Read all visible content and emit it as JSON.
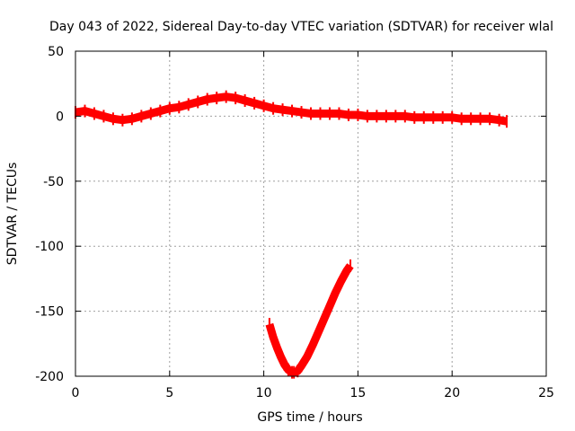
{
  "chart_data": {
    "type": "line",
    "title": "Day 043 of 2022, Sidereal Day-to-day VTEC variation (SDTVAR) for receiver wlal",
    "xlabel": "GPS time / hours",
    "ylabel": "SDTVAR / TECUs",
    "xlim": [
      0,
      25
    ],
    "ylim": [
      -200,
      50
    ],
    "grid": true,
    "xticks": [
      0,
      5,
      10,
      15,
      20,
      25
    ],
    "yticks": [
      50,
      0,
      -50,
      -100,
      -150,
      -200
    ],
    "xtick_labels": [
      "0",
      "5",
      "10",
      "15",
      "20",
      "25"
    ],
    "ytick_labels": [
      "50",
      "0",
      "-50",
      "-100",
      "-150",
      "-200"
    ],
    "series_color": "#ff0000",
    "series": [
      {
        "name": "main-trace",
        "x": [
          0,
          0.5,
          1,
          1.5,
          2,
          2.5,
          3,
          3.5,
          4,
          4.5,
          5,
          5.5,
          6,
          6.5,
          7,
          7.5,
          8,
          8.5,
          9,
          9.5,
          10,
          10.5,
          11,
          11.5,
          12,
          12.5,
          13,
          13.5,
          14,
          14.5,
          15,
          15.5,
          16,
          16.5,
          17,
          17.5,
          18,
          18.5,
          19,
          19.5,
          20,
          20.5,
          21,
          21.5,
          22,
          22.5,
          22.9
        ],
        "y": [
          3,
          4,
          2,
          0,
          -2,
          -3,
          -2,
          0,
          2,
          4,
          6,
          7,
          9,
          11,
          13,
          14,
          15,
          14,
          12,
          10,
          8,
          6,
          5,
          4,
          3,
          2,
          2,
          2,
          2,
          1,
          1,
          0,
          0,
          0,
          0,
          0,
          -1,
          -1,
          -1,
          -1,
          -1,
          -2,
          -2,
          -2,
          -2,
          -3,
          -4
        ]
      },
      {
        "name": "dip-trace",
        "x": [
          10.3,
          10.5,
          10.7,
          10.9,
          11.1,
          11.3,
          11.5,
          11.6,
          11.8,
          12.0,
          12.3,
          12.6,
          12.9,
          13.2,
          13.5,
          13.8,
          14.1,
          14.4,
          14.6
        ],
        "y": [
          -160,
          -170,
          -178,
          -185,
          -191,
          -195,
          -197,
          -197,
          -196,
          -192,
          -185,
          -176,
          -166,
          -156,
          -146,
          -136,
          -127,
          -119,
          -115
        ]
      }
    ]
  }
}
